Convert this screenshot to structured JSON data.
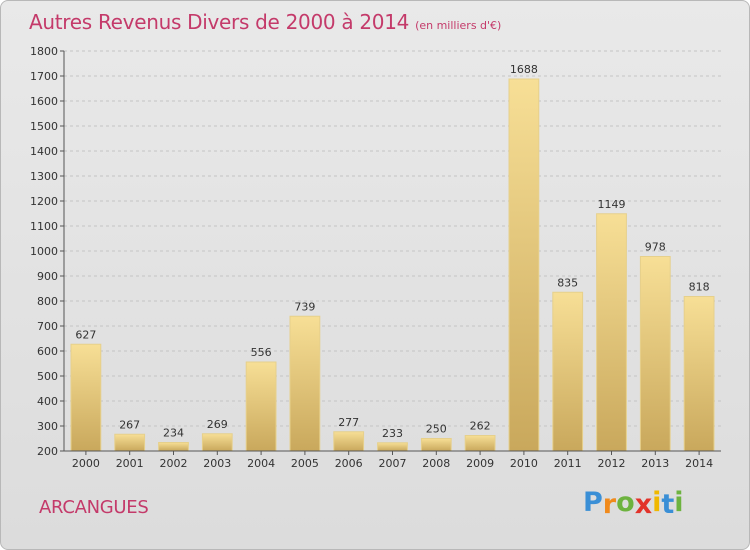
{
  "title": "Autres Revenus Divers de 2000 à 2014",
  "subtitle": "(en milliers d'€)",
  "place": "ARCANGUES",
  "logo": {
    "letters": [
      "P",
      "r",
      "o",
      "x",
      "i",
      "t",
      "i"
    ],
    "colors": [
      "#3a8fd6",
      "#f08a1c",
      "#6db33f",
      "#e2332a",
      "#f0b800",
      "#3a8fd6",
      "#6db33f"
    ]
  },
  "chart_data": {
    "type": "bar",
    "categories": [
      "2000",
      "2001",
      "2002",
      "2003",
      "2004",
      "2005",
      "2006",
      "2007",
      "2008",
      "2009",
      "2010",
      "2011",
      "2012",
      "2013",
      "2014"
    ],
    "values": [
      627,
      267,
      234,
      269,
      556,
      739,
      277,
      233,
      250,
      262,
      1688,
      835,
      1149,
      978,
      818
    ],
    "ylim": [
      200,
      1800
    ],
    "yticks": [
      200,
      300,
      400,
      500,
      600,
      700,
      800,
      900,
      1000,
      1100,
      1200,
      1300,
      1400,
      1500,
      1600,
      1700,
      1800
    ],
    "grid": true,
    "bar_color": "#e8c878"
  }
}
